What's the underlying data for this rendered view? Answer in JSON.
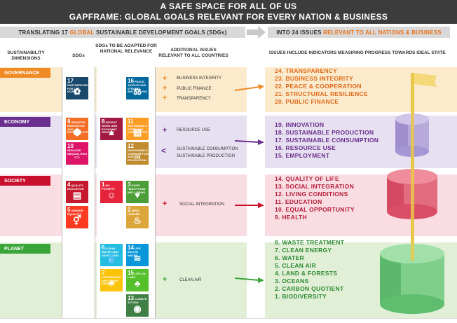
{
  "header": {
    "line1": "A SAFE SPACE FOR ALL OF US",
    "line2": "GAPFRAME: GLOBAL GOALS RELEVANT FOR EVERY NATION & BUSINESS"
  },
  "banners": {
    "left_pre": "TRANSLATING 17 ",
    "left_hl": "GLOBAL",
    "left_post": " SUSTAINABLE DEVELOPMENT GOALS (SDGs)",
    "right_pre": "INTO 24 ISSUES ",
    "right_hl": "RELEVANT TO ALL NATIONS & BUSINESS"
  },
  "column_headers": {
    "dimensions": "SUSTAINABILITY DIMENSIONS",
    "sdgs": "SDGs",
    "adapted": "SDGs TO BE ADAPTED FOR NATIONAL RELEVANCE",
    "additional": "ADDITIONAL ISSUES RELEVANT TO ALL COUNTRIES",
    "indicators": "ISSUES INCLUDE INDICATORS MEASIRING PROGRESS TOWARDS IDEAL STATE"
  },
  "colors": {
    "governance": "#f08a24",
    "economy": "#6a2f8f",
    "society": "#c8102e",
    "planet": "#3aa639"
  },
  "dimensions": {
    "governance": {
      "label": "GOVERNANCE",
      "sdgs": [
        {
          "num": "17",
          "title": "PARTNERSHIPS FOR THE GOALS",
          "color": "#19486a",
          "icon": "✿"
        }
      ],
      "adapted": [
        {
          "num": "16",
          "title": "PEACE, JUSTICE AND STRONG INSTITUTIONS",
          "color": "#00689d",
          "icon": "⚖"
        }
      ],
      "additional": [
        {
          "sign": "+",
          "text": "BUSINESS INTEGRITY"
        },
        {
          "sign": "+",
          "text": "PUBLIC FINANCE"
        },
        {
          "sign": "+",
          "text": "TRANSPARENCY"
        }
      ],
      "issues": [
        "24. TRANSPARENCY",
        "23. BUSINESS INTEGRITY",
        "22. PEACE & COOPERATION",
        "21. STRUCTURAL RESILIENCE",
        "20. PUBLIC FINANCE"
      ]
    },
    "economy": {
      "label": "ECONOMY",
      "sdgs": [
        {
          "num": "9",
          "title": "INDUSTRY, INNOVATION AND INFRASTRUCTURE",
          "color": "#f36d25",
          "icon": "⬢"
        },
        {
          "num": "10",
          "title": "REDUCED INEQUALITIES",
          "color": "#dd1367",
          "icon": "⇔"
        }
      ],
      "adapted": [
        {
          "num": "8",
          "title": "DECENT WORK AND ECONOMIC GROWTH",
          "color": "#a21942",
          "icon": "▲"
        },
        {
          "num": "11",
          "title": "SUSTAINABLE CITIES AND COMMUNITIES",
          "color": "#fd9d24",
          "icon": "▥"
        },
        {
          "num": "12",
          "title": "RESPONSIBLE CONSUMPTION AND PRODUCTION",
          "color": "#bf8b2e",
          "icon": "∞"
        }
      ],
      "additional": [
        {
          "sign": "+",
          "text": "RESOURCE USE"
        },
        {
          "sign": "<",
          "text": "SUSTAINABLE CONSUMPTION"
        },
        {
          "sign": "",
          "text": "SUSTAINABLE PRODUCTION"
        }
      ],
      "issues": [
        "19. INNOVATION",
        "18. SUSTAINABLE PRODUCTION",
        "17. SUSTAINABLE CONSUMPTION",
        "16. RESOURCE USE",
        "15. EMPLOYMENT"
      ]
    },
    "society": {
      "label": "SOCIETY",
      "sdgs": [
        {
          "num": "4",
          "title": "QUALITY EDUCATION",
          "color": "#c5192d",
          "icon": "▤"
        },
        {
          "num": "5",
          "title": "GENDER EQUALITY",
          "color": "#ff3a21",
          "icon": "⚥"
        }
      ],
      "adapted": [
        {
          "num": "1",
          "title": "NO POVERTY",
          "color": "#e5243b",
          "icon": "☺"
        },
        {
          "num": "3",
          "title": "GOOD HEALTH AND WELL-BEING",
          "color": "#4c9f38",
          "icon": "♥"
        },
        {
          "num": "2",
          "title": "ZERO HUNGER",
          "color": "#dda63a",
          "icon": "♨"
        }
      ],
      "additional": [
        {
          "sign": "+",
          "text": "SOCIAL INTEGRATION"
        }
      ],
      "issues": [
        "14. QUALITY OF LIFE",
        "13. SOCIAL INTEGRATION",
        "12. LIVING CONDITIONS",
        "11. EDUCATION",
        "10. EQUAL OPPORTUNITY",
        "9.   HEALTH"
      ]
    },
    "planet": {
      "label": "PLANET",
      "sdgs": [],
      "adapted": [
        {
          "num": "6",
          "title": "CLEAN WATER AND SANITATION",
          "color": "#26bde2",
          "icon": "💧"
        },
        {
          "num": "14",
          "title": "LIFE BELOW WATER",
          "color": "#0a97d9",
          "icon": "≋"
        },
        {
          "num": "7",
          "title": "AFFORDABLE AND CLEAN ENERGY",
          "color": "#fcc30b",
          "icon": "☀"
        },
        {
          "num": "15",
          "title": "LIFE ON LAND",
          "color": "#56c02b",
          "icon": "♣"
        },
        {
          "num": "13",
          "title": "CLIMATE ACTION",
          "color": "#3f7e44",
          "icon": "◉"
        }
      ],
      "additional": [
        {
          "sign": "+",
          "text": "CLEAN AIR"
        }
      ],
      "issues": [
        "8.   WASTE TREATMENT",
        "7.   CLEAN ENERGY",
        "6.   WATER",
        "5.   CLEAN AIR",
        "4.   LAND & FORESTS",
        "3.   OCEANS",
        "2.   CARBON QUOTIENT",
        "1.   BIODIVERSITY"
      ]
    }
  }
}
